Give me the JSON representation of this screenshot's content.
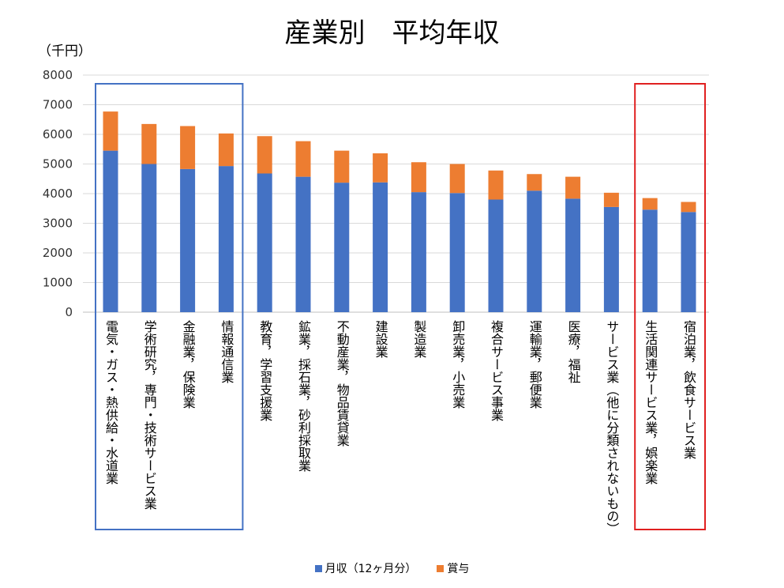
{
  "chart_data": {
    "type": "bar",
    "stacked": true,
    "title": "産業別　平均年収",
    "ylabel": "（千円）",
    "xlabel": "",
    "ylim": [
      0,
      8000
    ],
    "yticks": [
      0,
      1000,
      2000,
      3000,
      4000,
      5000,
      6000,
      7000,
      8000
    ],
    "grid": true,
    "legend_position": "bottom",
    "categories": [
      "電気・ガス・熱供給・水道業",
      "学術研究，専門・技術サービス業",
      "金融業，保険業",
      "情報通信業",
      "教育，学習支援業",
      "鉱業，採石業，砂利採取業",
      "不動産業，物品賃貸業",
      "建設業",
      "製造業",
      "卸売業，小売業",
      "複合サービス事業",
      "運輸業，郵便業",
      "医療，福祉",
      "サービス業（他に分類されないもの）",
      "生活関連サービス業，娯楽業",
      "宿泊業，飲食サービス業"
    ],
    "series": [
      {
        "name": "月収（12ヶ月分）",
        "color": "#4472C4",
        "values": [
          5450,
          5000,
          4830,
          4930,
          4680,
          4570,
          4370,
          4380,
          4050,
          4020,
          3800,
          4100,
          3830,
          3550,
          3460,
          3380
        ]
      },
      {
        "name": "賞与",
        "color": "#ED7D31",
        "values": [
          1320,
          1350,
          1450,
          1100,
          1260,
          1200,
          1080,
          980,
          1010,
          980,
          980,
          560,
          740,
          480,
          390,
          340
        ]
      }
    ],
    "highlights": [
      {
        "from": 0,
        "to": 3,
        "color": "#4472C4"
      },
      {
        "from": 14,
        "to": 15,
        "color": "#E02020"
      }
    ]
  }
}
